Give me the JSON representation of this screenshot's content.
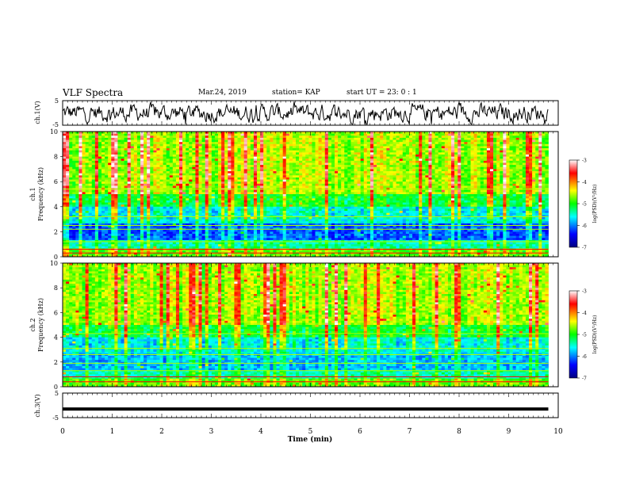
{
  "header": {
    "title": "VLF Spectra",
    "date": "Mar.24, 2019",
    "station": "station= KAP",
    "start": "start  UT =   23: 0  : 1"
  },
  "chart_data": [
    {
      "type": "line",
      "panel": "ch1-waveform",
      "ylabel": "ch.1(V)",
      "ylim": [
        -5,
        5
      ],
      "yticks": [
        "5",
        "-5"
      ],
      "xlim": [
        0,
        10
      ],
      "note_values": "noisy waveform oscillating roughly between -4 and +4 V"
    },
    {
      "type": "heatmap",
      "panel": "ch1-spectrogram",
      "ylabel_top": "ch.1",
      "ylabel": "Frequency (kHz)",
      "ylim": [
        0,
        10
      ],
      "yticks": [
        "0",
        "2",
        "4",
        "6",
        "8",
        "10"
      ],
      "xlim": [
        0,
        9.8
      ],
      "colorbar": {
        "label": "log(PSD)(V²/Hz)",
        "range": [
          -7,
          -3
        ],
        "ticks": [
          "-3",
          "-4",
          "-5",
          "-6",
          "-7"
        ]
      }
    },
    {
      "type": "heatmap",
      "panel": "ch2-spectrogram",
      "ylabel_top": "ch.2",
      "ylabel": "Frequency (kHz)",
      "ylim": [
        0,
        10
      ],
      "yticks": [
        "0",
        "2",
        "4",
        "6",
        "8",
        "10"
      ],
      "xlim": [
        0,
        9.8
      ],
      "colorbar": {
        "label": "log(PSD)(V²/Hz)",
        "range": [
          -7,
          -3
        ],
        "ticks": [
          "-3",
          "-4",
          "-5",
          "-6",
          "-7"
        ]
      }
    },
    {
      "type": "line",
      "panel": "ch3-waveform",
      "ylabel": "ch.3(V)",
      "ylim": [
        -5,
        5
      ],
      "yticks": [
        "5",
        "-5"
      ],
      "values_constant": -1.5,
      "xlim": [
        0,
        10
      ]
    }
  ],
  "xaxis": {
    "label": "Time (min)",
    "ticks": [
      "0",
      "1",
      "2",
      "3",
      "4",
      "5",
      "6",
      "7",
      "8",
      "9",
      "10"
    ]
  },
  "colors": {
    "line": "#000000",
    "grid": "#000000"
  }
}
